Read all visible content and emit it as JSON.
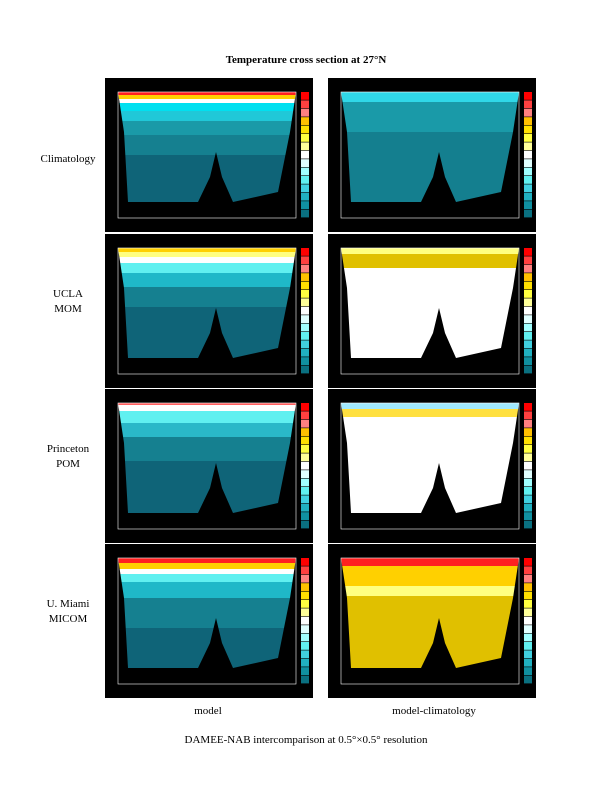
{
  "figure": {
    "title": "Temperature cross section at 27°N",
    "row_labels": [
      [
        "Climatology"
      ],
      [
        "UCLA",
        "MOM"
      ],
      [
        "Princeton",
        "POM"
      ],
      [
        "U. Miami",
        "MICOM"
      ]
    ],
    "column_labels": [
      "model",
      "model-climatology"
    ],
    "caption": "DAMEE-NAB intercomparison at 0.5°×0.5° resolution"
  }
}
